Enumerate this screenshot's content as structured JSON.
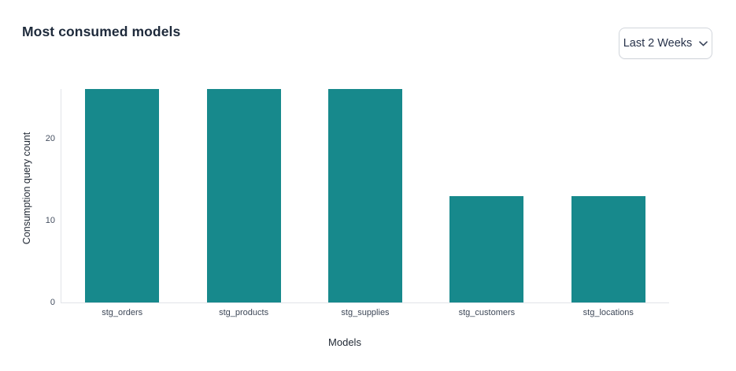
{
  "page": {
    "title": "Most consumed models"
  },
  "controls": {
    "time_filter": {
      "selected": "Last 2 Weeks",
      "chevron_icon": "chevron-down"
    }
  },
  "chart_data": {
    "type": "bar",
    "title": "Most consumed models",
    "categories": [
      "stg_orders",
      "stg_products",
      "stg_supplies",
      "stg_customers",
      "stg_locations"
    ],
    "values": [
      26,
      26,
      26,
      13,
      13
    ],
    "xlabel": "Models",
    "ylabel": "Consumption query count",
    "ylim": [
      0,
      26
    ],
    "yticks": [
      0,
      10,
      20
    ],
    "grid": false,
    "legend": "none",
    "bar_color": "#17898c",
    "axis_color": "#e1e4e9"
  }
}
